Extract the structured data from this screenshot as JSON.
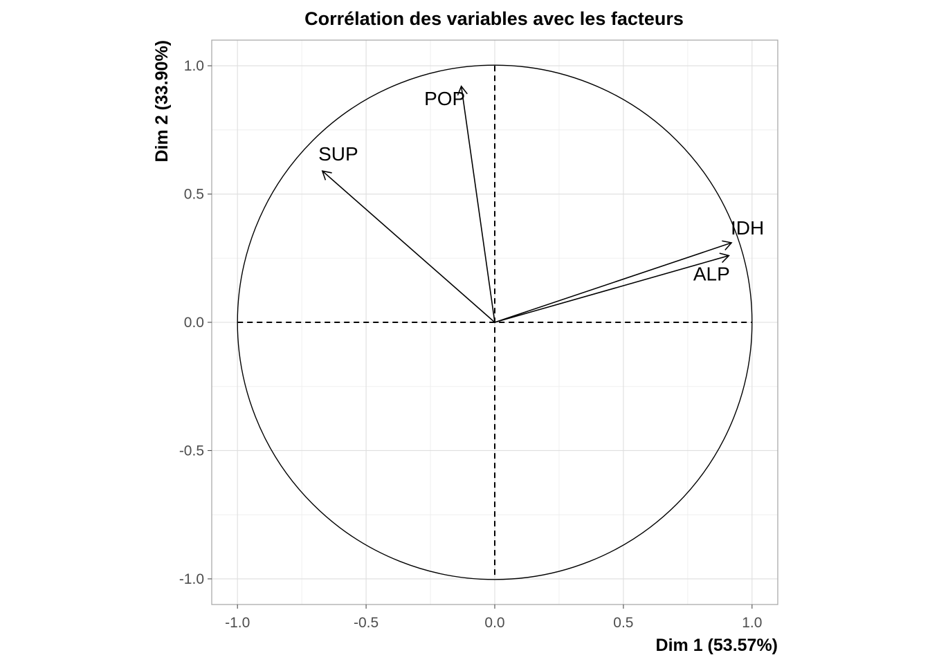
{
  "chart_data": {
    "type": "scatter",
    "subtype": "correlation-circle",
    "title": "Corrélation des variables avec les facteurs",
    "xlabel": "Dim 1 (53.57%)",
    "ylabel": "Dim 2 (33.90%)",
    "xlim": [
      -1.1,
      1.1
    ],
    "ylim": [
      -1.1,
      1.1
    ],
    "x_ticks": [
      -1.0,
      -0.5,
      0.0,
      0.5,
      1.0
    ],
    "y_ticks": [
      -1.0,
      -0.5,
      0.0,
      0.5,
      1.0
    ],
    "x_tick_labels": [
      "-1.0",
      "-0.5",
      "0.0",
      "0.5",
      "1.0"
    ],
    "y_tick_labels": [
      "-1.0",
      "-0.5",
      "0.0",
      "0.5",
      "1.0"
    ],
    "grid": true,
    "unit_circle": true,
    "variables": [
      {
        "name": "POP",
        "x": -0.13,
        "y": 0.92
      },
      {
        "name": "SUP",
        "x": -0.67,
        "y": 0.59
      },
      {
        "name": "IDH",
        "x": 0.92,
        "y": 0.31
      },
      {
        "name": "ALP",
        "x": 0.91,
        "y": 0.26
      }
    ],
    "colors": {
      "arrows": "#000000",
      "grid": "#dedede",
      "panel_border": "#aaaaaa"
    }
  }
}
